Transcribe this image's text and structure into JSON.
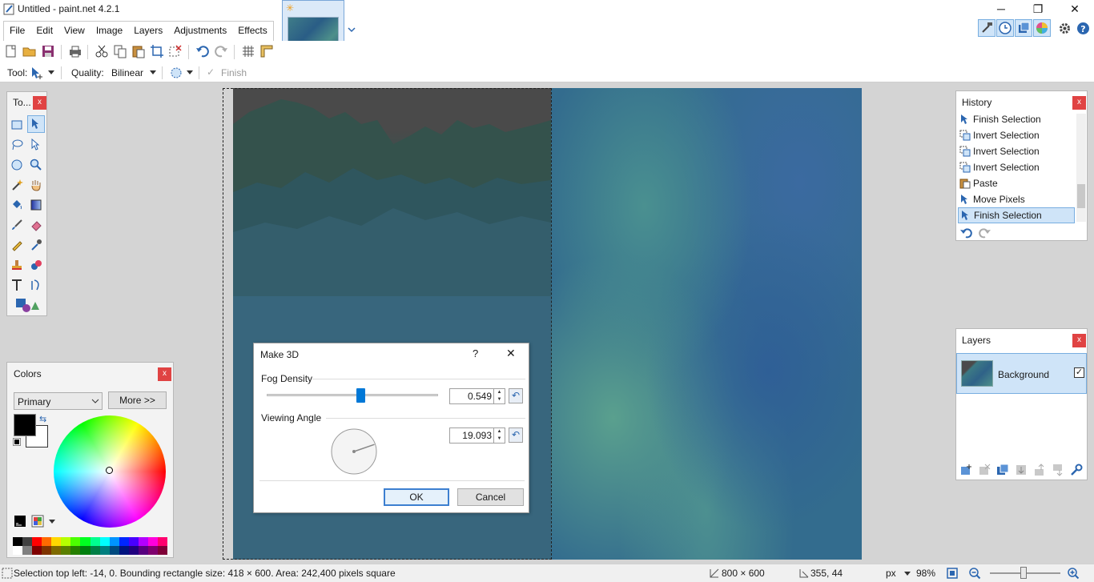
{
  "window": {
    "title": "Untitled - paint.net 4.2.1",
    "minimize": "─",
    "restore": "❐",
    "close": "✕"
  },
  "menu": {
    "items": [
      "File",
      "Edit",
      "View",
      "Image",
      "Layers",
      "Adjustments",
      "Effects"
    ]
  },
  "toolbar2": {
    "tool_label": "Tool:",
    "quality_label": "Quality:",
    "quality_value": "Bilinear",
    "finish_label": "Finish"
  },
  "tools_window": {
    "title": "To...",
    "close": "x"
  },
  "colors_window": {
    "title": "Colors",
    "close": "x",
    "mode_select": "Primary",
    "more_button": "More >>",
    "palette": [
      "#000000",
      "#404040",
      "#ff0000",
      "#ff6a00",
      "#ffd800",
      "#b6ff00",
      "#4cff00",
      "#00ff21",
      "#00ff90",
      "#00ffff",
      "#0094ff",
      "#0026ff",
      "#4800ff",
      "#b200ff",
      "#ff00dc",
      "#ff006e"
    ],
    "palette_dark": [
      "#ffffff",
      "#808080",
      "#7f0000",
      "#7f3300",
      "#7f6a00",
      "#5b7f00",
      "#267f00",
      "#007f0e",
      "#007f46",
      "#007f7f",
      "#004a7f",
      "#00137f",
      "#21007f",
      "#57007f",
      "#7f006e",
      "#7f0037"
    ],
    "primary_color": "#000000",
    "secondary_color": "#ffffff"
  },
  "dialog": {
    "title": "Make 3D",
    "help": "?",
    "close": "✕",
    "fog_label": "Fog Density",
    "fog_value": "0.549",
    "fog_fraction": 0.549,
    "angle_label": "Viewing Angle",
    "angle_value": "19.093",
    "ok": "OK",
    "cancel": "Cancel"
  },
  "history_window": {
    "title": "History",
    "close": "x",
    "items": [
      {
        "label": "Finish Selection",
        "icon": "move-selection-icon"
      },
      {
        "label": "Invert Selection",
        "icon": "invert-selection-icon"
      },
      {
        "label": "Invert Selection",
        "icon": "invert-selection-icon"
      },
      {
        "label": "Invert Selection",
        "icon": "invert-selection-icon"
      },
      {
        "label": "Paste",
        "icon": "paste-icon"
      },
      {
        "label": "Move Pixels",
        "icon": "move-pixels-icon"
      },
      {
        "label": "Finish Selection",
        "icon": "move-selection-icon"
      }
    ],
    "selected_index": 6
  },
  "layers_window": {
    "title": "Layers",
    "close": "x",
    "layers": [
      {
        "name": "Background",
        "visible": true
      }
    ]
  },
  "statusbar": {
    "selection_info": "Selection top left: -14, 0. Bounding rectangle size: 418 × 600. Area: 242,400 pixels square",
    "image_size": "800 × 600",
    "cursor_pos": "355, 44",
    "units": "px",
    "zoom": "98%"
  },
  "colors": {
    "accent": "#0078d7",
    "selection_bg": "#cfe4f8",
    "close_red": "#e04343"
  }
}
